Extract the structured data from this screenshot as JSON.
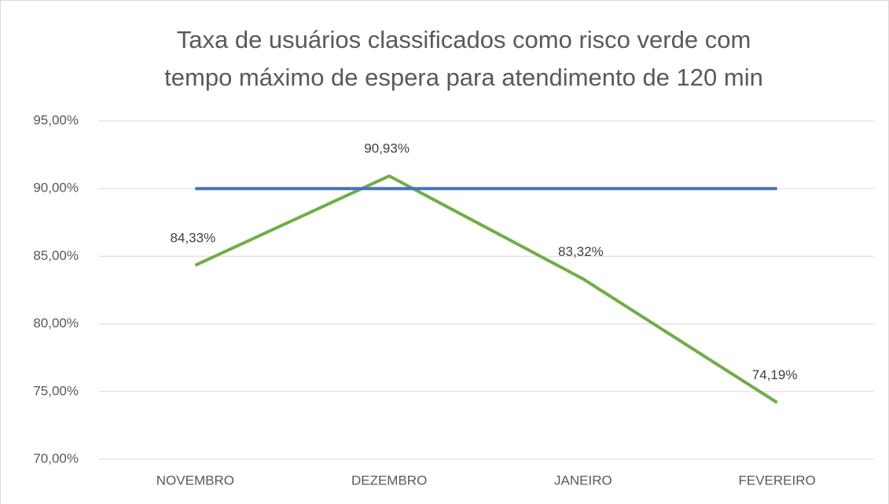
{
  "chart_data": {
    "type": "line",
    "title": [
      "Taxa de usuários classificados como risco verde com",
      "tempo máximo de espera para atendimento de 120 min"
    ],
    "categories": [
      "NOVEMBRO",
      "DEZEMBRO",
      "JANEIRO",
      "FEVEREIRO"
    ],
    "series": [
      {
        "color": "#70ad47",
        "values": [
          84.33,
          90.93,
          83.32,
          74.19
        ],
        "value_labels": [
          "84,33%",
          "90,93%",
          "83,32%",
          "74,19%"
        ]
      },
      {
        "color": "#4472c4",
        "values": [
          90,
          90,
          90,
          90
        ]
      }
    ],
    "ylim": [
      70,
      95
    ],
    "yticks": [
      {
        "value": 70,
        "label": "70,00%"
      },
      {
        "value": 75,
        "label": "75,00%"
      },
      {
        "value": 80,
        "label": "80,00%"
      },
      {
        "value": 85,
        "label": "85,00%"
      },
      {
        "value": 90,
        "label": "90,00%"
      },
      {
        "value": 95,
        "label": "95,00%"
      }
    ],
    "grid": true
  }
}
